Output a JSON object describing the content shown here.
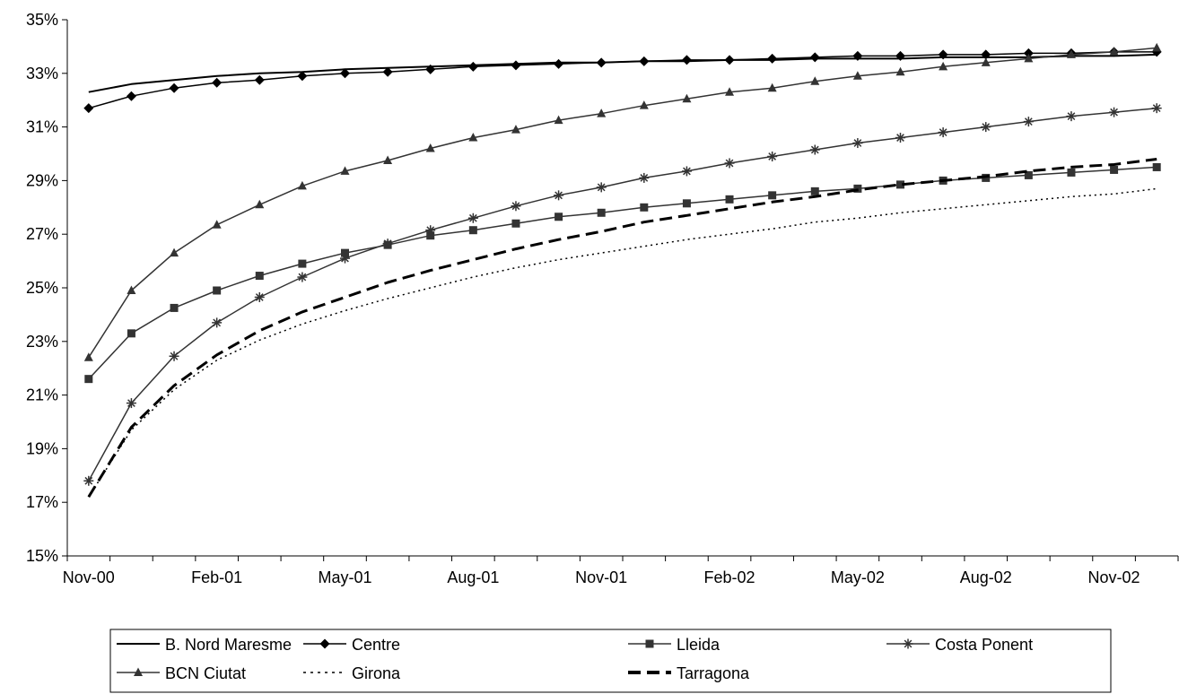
{
  "chart_data": {
    "type": "line",
    "title": "",
    "xlabel": "",
    "ylabel": "",
    "x": [
      "Nov-00",
      "Dec-00",
      "Jan-01",
      "Feb-01",
      "Mar-01",
      "Apr-01",
      "May-01",
      "Jun-01",
      "Jul-01",
      "Aug-01",
      "Sep-01",
      "Oct-01",
      "Nov-01",
      "Dec-01",
      "Jan-02",
      "Feb-02",
      "Mar-02",
      "Apr-02",
      "May-02",
      "Jun-02",
      "Jul-02",
      "Aug-02",
      "Sep-02",
      "Oct-02",
      "Nov-02",
      "Dec-02"
    ],
    "x_tick_labels": [
      "Nov-00",
      "Feb-01",
      "May-01",
      "Aug-01",
      "Nov-01",
      "Feb-02",
      "May-02",
      "Aug-02",
      "Nov-02"
    ],
    "y_tick_labels": [
      "15%",
      "17%",
      "19%",
      "21%",
      "23%",
      "25%",
      "27%",
      "29%",
      "31%",
      "33%",
      "35%"
    ],
    "ylim": [
      15,
      35
    ],
    "y_unit": "%",
    "grid": false,
    "legend_position": "bottom",
    "series": [
      {
        "name": "B. Nord Maresme",
        "marker": "none",
        "dash": "solid",
        "color": "#000000",
        "values": [
          32.3,
          32.6,
          32.75,
          32.9,
          33.0,
          33.05,
          33.15,
          33.2,
          33.25,
          33.3,
          33.35,
          33.4,
          33.4,
          33.45,
          33.45,
          33.5,
          33.5,
          33.55,
          33.55,
          33.55,
          33.6,
          33.6,
          33.6,
          33.65,
          33.65,
          33.7
        ]
      },
      {
        "name": "Centre",
        "marker": "diamond",
        "dash": "solid",
        "color": "#000000",
        "values": [
          31.7,
          32.15,
          32.45,
          32.65,
          32.75,
          32.9,
          33.0,
          33.05,
          33.15,
          33.25,
          33.3,
          33.35,
          33.4,
          33.45,
          33.5,
          33.5,
          33.55,
          33.6,
          33.65,
          33.65,
          33.7,
          33.7,
          33.75,
          33.75,
          33.8,
          33.8
        ]
      },
      {
        "name": "Lleida",
        "marker": "square",
        "dash": "solid",
        "color": "#333333",
        "values": [
          21.6,
          23.3,
          24.25,
          24.9,
          25.45,
          25.9,
          26.3,
          26.6,
          26.95,
          27.15,
          27.4,
          27.65,
          27.8,
          28.0,
          28.15,
          28.3,
          28.45,
          28.6,
          28.7,
          28.85,
          29.0,
          29.1,
          29.2,
          29.3,
          29.4,
          29.5
        ]
      },
      {
        "name": "Costa Ponent",
        "marker": "star",
        "dash": "solid",
        "color": "#333333",
        "values": [
          17.8,
          20.7,
          22.45,
          23.7,
          24.65,
          25.4,
          26.1,
          26.65,
          27.15,
          27.6,
          28.05,
          28.45,
          28.75,
          29.1,
          29.35,
          29.65,
          29.9,
          30.15,
          30.4,
          30.6,
          30.8,
          31.0,
          31.2,
          31.4,
          31.55,
          31.7
        ]
      },
      {
        "name": "BCN Ciutat",
        "marker": "triangle",
        "dash": "solid",
        "color": "#333333",
        "values": [
          22.4,
          24.9,
          26.3,
          27.35,
          28.1,
          28.8,
          29.35,
          29.75,
          30.2,
          30.6,
          30.9,
          31.25,
          31.5,
          31.8,
          32.05,
          32.3,
          32.45,
          32.7,
          32.9,
          33.05,
          33.25,
          33.4,
          33.55,
          33.7,
          33.8,
          33.95
        ]
      },
      {
        "name": "Girona",
        "marker": "none",
        "dash": "dotted",
        "color": "#000000",
        "values": [
          17.2,
          19.7,
          21.2,
          22.3,
          23.05,
          23.65,
          24.15,
          24.6,
          25.0,
          25.4,
          25.75,
          26.05,
          26.3,
          26.55,
          26.8,
          27.0,
          27.2,
          27.45,
          27.6,
          27.8,
          27.95,
          28.1,
          28.25,
          28.4,
          28.5,
          28.7
        ]
      },
      {
        "name": "Tarragona",
        "marker": "none",
        "dash": "dashed",
        "color": "#000000",
        "values": [
          17.2,
          19.8,
          21.35,
          22.5,
          23.4,
          24.1,
          24.65,
          25.2,
          25.65,
          26.05,
          26.45,
          26.8,
          27.1,
          27.45,
          27.7,
          27.95,
          28.2,
          28.4,
          28.65,
          28.85,
          29.0,
          29.15,
          29.35,
          29.5,
          29.6,
          29.8
        ]
      }
    ]
  }
}
